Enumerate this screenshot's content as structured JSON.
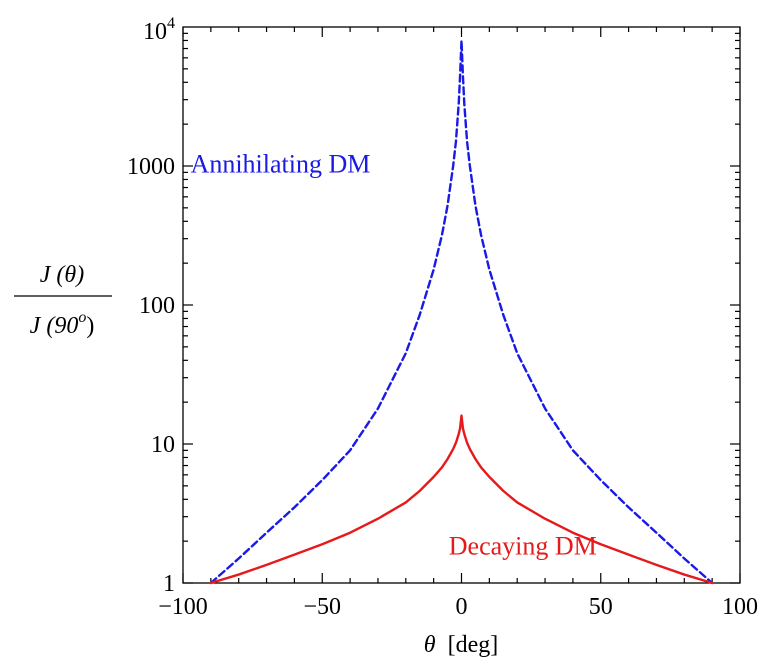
{
  "chart_data": {
    "type": "line",
    "title": "",
    "xlabel": "θ [deg]",
    "xlabel_parts": {
      "var": "θ",
      "unit": "[deg]"
    },
    "ylabel": "J(θ) / J(90°)",
    "ylabel_parts": {
      "numerator": "J (θ)",
      "denominator_prefix": "J (90",
      "denominator_sup": "o",
      "denominator_suffix": ")"
    },
    "xlim": [
      -100,
      100
    ],
    "ylim": [
      1,
      10000
    ],
    "yscale": "log",
    "grid": false,
    "x_ticks": [
      {
        "value": -100,
        "label": "−100"
      },
      {
        "value": -50,
        "label": "−50"
      },
      {
        "value": 0,
        "label": "0"
      },
      {
        "value": 50,
        "label": "50"
      },
      {
        "value": 100,
        "label": "100"
      }
    ],
    "y_ticks": [
      {
        "value": 1,
        "label": "1"
      },
      {
        "value": 10,
        "label": "10"
      },
      {
        "value": 100,
        "label": "100"
      },
      {
        "value": 1000,
        "label": "1000"
      },
      {
        "value": 10000,
        "label_base": "10",
        "label_exp": "4"
      }
    ],
    "series": [
      {
        "name": "Annihilating DM",
        "color": "#1a1ae6",
        "style": "dashed",
        "x": [
          -90,
          -80,
          -70,
          -60,
          -50,
          -40,
          -30,
          -20,
          -15,
          -10,
          -7,
          -5,
          -3,
          -2,
          -1,
          -0.5,
          0,
          0.5,
          1,
          2,
          3,
          5,
          7,
          10,
          15,
          20,
          30,
          40,
          50,
          60,
          70,
          80,
          90
        ],
        "y": [
          1,
          1.5,
          2.3,
          3.5,
          5.5,
          9,
          18,
          45,
          85,
          180,
          320,
          520,
          1000,
          1500,
          2800,
          4500,
          8000,
          4500,
          2800,
          1500,
          1000,
          520,
          320,
          180,
          85,
          45,
          18,
          9,
          5.5,
          3.5,
          2.3,
          1.5,
          1
        ]
      },
      {
        "name": "Decaying DM",
        "color": "#e61a1a",
        "style": "solid",
        "x": [
          -90,
          -80,
          -70,
          -60,
          -50,
          -40,
          -30,
          -20,
          -15,
          -10,
          -7,
          -5,
          -3,
          -2,
          -1,
          -0.5,
          0,
          0.5,
          1,
          2,
          3,
          5,
          7,
          10,
          15,
          20,
          30,
          40,
          50,
          60,
          70,
          80,
          90
        ],
        "y": [
          1,
          1.15,
          1.35,
          1.6,
          1.9,
          2.3,
          2.9,
          3.8,
          4.6,
          5.8,
          6.8,
          7.8,
          9.2,
          10.2,
          11.8,
          13,
          16,
          13,
          11.8,
          10.2,
          9.2,
          7.8,
          6.8,
          5.8,
          4.6,
          3.8,
          2.9,
          2.3,
          1.9,
          1.6,
          1.35,
          1.15,
          1
        ]
      }
    ],
    "annotations": [
      {
        "text": "Annihilating DM",
        "color": "#1a1ae6",
        "x": -65,
        "y": 900
      },
      {
        "text": "Decaying DM",
        "color": "#e61a1a",
        "x": 22,
        "y": 1.6
      }
    ]
  }
}
